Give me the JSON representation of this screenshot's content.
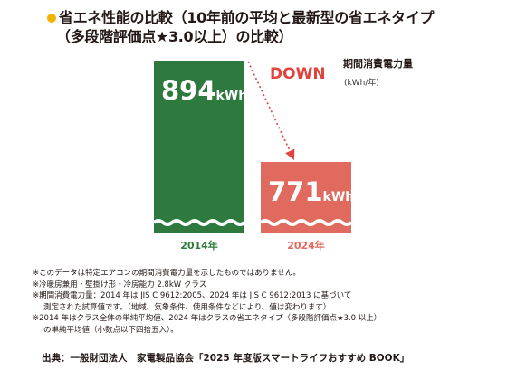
{
  "title": {
    "line1": "省エネ性能の比較（10年前の平均と最新型の省エネタイプ",
    "line2": "（多段階評価点★3.0以上）の比較）"
  },
  "unit_label": "期間消費電力量",
  "unit_sub": "(kWh/年)",
  "colors": {
    "bar_2014": "#2e7a3e",
    "bar_2024": "#e06a5e",
    "accent": "#e0443c",
    "bullet": "#f0b400"
  },
  "chart_data": {
    "type": "bar",
    "categories": [
      "2014年",
      "2024年"
    ],
    "values": [
      894,
      771
    ],
    "value_unit": "kWh",
    "annotation": "DOWN",
    "ylabel": "期間消費電力量 (kWh/年)",
    "axis_break": true,
    "ylim": [
      0,
      894
    ]
  },
  "notes": [
    "※このデータは特定エアコンの期間消費電力量を示したものではありません。",
    "※冷暖房兼用・壁掛け形・冷房能力 2.8kW クラス",
    "※期間消費電力量：2014 年は JIS C 9612:2005、2024 年は JIS C 9612:2013 に基づいて",
    "測定された試算値です。（地域、気象条件、使用条件などにより、値は変わります）",
    "※2014 年はクラス全体の単純平均値、2024 年はクラスの省エネタイプ（多段階評価点★3.0 以上）",
    "の単純平均値（小数点以下四捨五入）。"
  ],
  "source": "出典：一般財団法人　家電製品協会「2025 年度版スマートライフおすすめ BOOK」"
}
